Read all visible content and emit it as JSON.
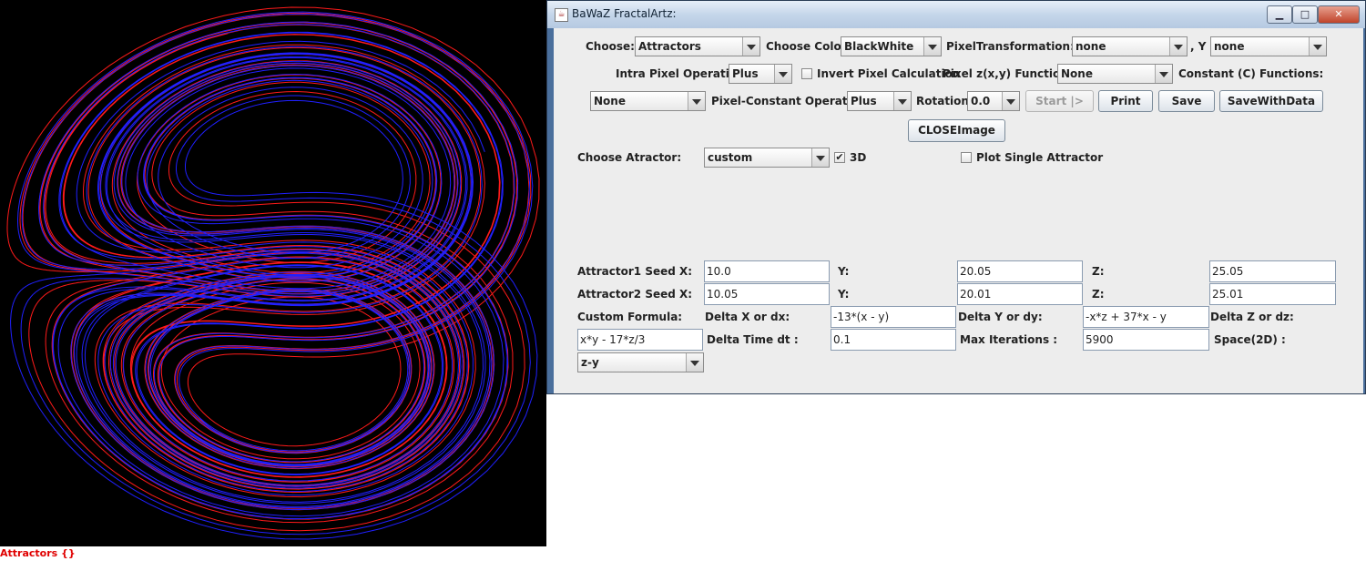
{
  "canvas": {
    "caption": "Attractors {}",
    "background": "#000000",
    "series_colors": [
      "#ff1a1a",
      "#2020ff"
    ]
  },
  "window": {
    "title": "BaWaZ FractalArtz:",
    "controls": {
      "minimize": "▁",
      "maximize": "□",
      "close": "✕"
    }
  },
  "row1": {
    "choose_label": "Choose:",
    "choose_value": "Attractors",
    "color_label": "Choose Color:",
    "color_value": "BlackWhite",
    "pixel_transform_label": "PixelTransformation:  X",
    "x_value": "none",
    "y_label": ",  Y",
    "y_value": "none"
  },
  "row2": {
    "intra_label": "Intra Pixel Operation:",
    "intra_value": "Plus",
    "invert_label": "Invert Pixel Calculation",
    "invert_checked": false,
    "pixel_func_label": "Pixel z(x,y) Functions:",
    "pixel_func_value": "None",
    "constant_label": "Constant (C) Functions:"
  },
  "row3": {
    "constant_value": "None",
    "pc_op_label": "Pixel-Constant Operation:",
    "pc_op_value": "Plus",
    "rotation_label": "Rotation:",
    "rotation_value": "0.0",
    "start_label": "Start |>",
    "print_label": "Print",
    "save_label": "Save",
    "save_data_label": "SaveWithData"
  },
  "row4": {
    "close_image_label": "CLOSEImage"
  },
  "attractor": {
    "choose_label": "Choose Atractor:",
    "choose_value": "custom",
    "three_d_label": "3D",
    "three_d_checked": true,
    "single_label": "Plot Single Attractor",
    "single_checked": false
  },
  "seeds": {
    "a1_label": "Attractor1  Seed  X:",
    "a1_x": "10.0",
    "a1_y_label": "Y:",
    "a1_y": "20.05",
    "a1_z_label": "Z:",
    "a1_z": "25.05",
    "a2_label": "Attractor2  Seed  X:",
    "a2_x": "10.05",
    "a2_y_label": "Y:",
    "a2_y": "20.01",
    "a2_z_label": "Z:",
    "a2_z": "25.01"
  },
  "formula": {
    "custom_label": "Custom Formula:",
    "dx_label": "Delta X or dx:",
    "dx": "-13*(x - y)",
    "dy_label": "Delta Y or dy:",
    "dy": "-x*z + 37*x - y",
    "dz_label": "Delta Z or dz:",
    "dz": "x*y - 17*z/3",
    "dt_label": "Delta Time dt :",
    "dt": "0.1",
    "iter_label": "Max Iterations  :",
    "iter": "5900",
    "space_label": "Space(2D)  :",
    "space_value": "z-y"
  }
}
